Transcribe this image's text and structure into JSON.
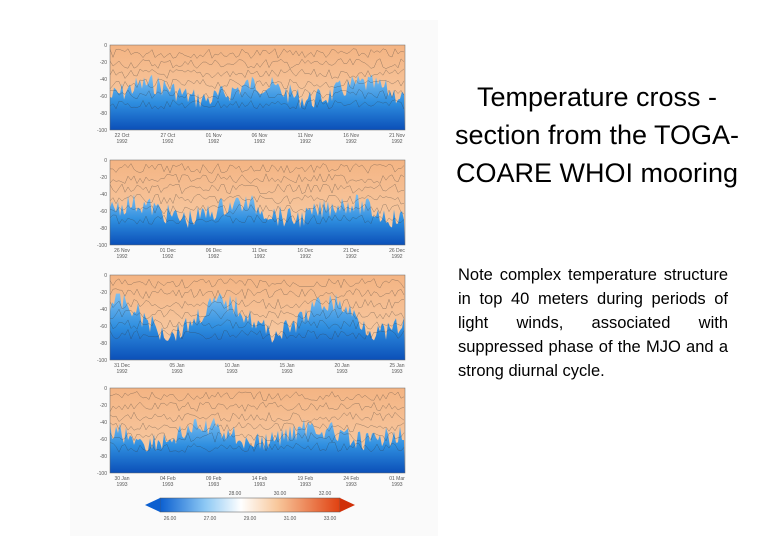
{
  "slide": {
    "title": "Temperature cross -section from the TOGA-COARE WHOI mooring",
    "note": "Note complex temperature structure in top 40 meters during periods of light winds, associated with suppressed phase of the MJO and a strong diurnal cycle.",
    "figure": {
      "y_labels": [
        "0",
        "-20",
        "-40",
        "-60",
        "-80",
        "-100"
      ],
      "panels": [
        {
          "dates": [
            [
              "22 Oct",
              "1992"
            ],
            [
              "27 Oct",
              "1992"
            ],
            [
              "01 Nov",
              "1992"
            ],
            [
              "06 Nov",
              "1992"
            ],
            [
              "11 Nov",
              "1992"
            ],
            [
              "16 Nov",
              "1992"
            ],
            [
              "21 Nov",
              "1992"
            ]
          ]
        },
        {
          "dates": [
            [
              "26 Nov",
              "1992"
            ],
            [
              "01 Dec",
              "1992"
            ],
            [
              "06 Dec",
              "1992"
            ],
            [
              "11 Dec",
              "1992"
            ],
            [
              "16 Dec",
              "1992"
            ],
            [
              "21 Dec",
              "1992"
            ],
            [
              "26 Dec",
              "1992"
            ]
          ]
        },
        {
          "dates": [
            [
              "31 Dec",
              "1992"
            ],
            [
              "05 Jan",
              "1993"
            ],
            [
              "10 Jan",
              "1993"
            ],
            [
              "15 Jan",
              "1993"
            ],
            [
              "20 Jan",
              "1993"
            ],
            [
              "25 Jan",
              "1993"
            ]
          ]
        },
        {
          "dates": [
            [
              "30 Jan",
              "1993"
            ],
            [
              "04 Feb",
              "1993"
            ],
            [
              "09 Feb",
              "1993"
            ],
            [
              "14 Feb",
              "1993"
            ],
            [
              "19 Feb",
              "1993"
            ],
            [
              "24 Feb",
              "1993"
            ],
            [
              "01 Mar",
              "1993"
            ]
          ]
        }
      ],
      "colorbar_upper": [
        "28.00",
        "30.00",
        "32.00"
      ],
      "colorbar_lower": [
        "26.00",
        "27.00",
        "29.00",
        "31.00",
        "33.00"
      ]
    }
  }
}
